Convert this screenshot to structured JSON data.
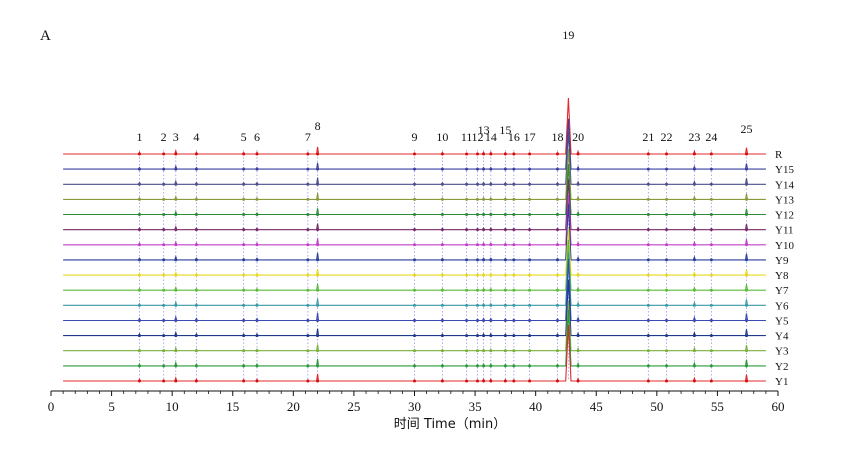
{
  "chart_data": {
    "type": "line",
    "panel_label": "A",
    "xlabel": "时间 Time（min）",
    "xlim": [
      0,
      60
    ],
    "x_ticks": [
      0,
      5,
      10,
      15,
      20,
      25,
      30,
      35,
      40,
      45,
      50,
      55,
      60
    ],
    "y_axis_shown": false,
    "grid": false,
    "legend": "none",
    "peaks": [
      {
        "label": "1",
        "rt": 7.3
      },
      {
        "label": "2",
        "rt": 9.3
      },
      {
        "label": "3",
        "rt": 10.3
      },
      {
        "label": "4",
        "rt": 12.0
      },
      {
        "label": "5",
        "rt": 15.9
      },
      {
        "label": "6",
        "rt": 17.0
      },
      {
        "label": "7",
        "rt": 21.2
      },
      {
        "label": "8",
        "rt": 22.0
      },
      {
        "label": "9",
        "rt": 30.0
      },
      {
        "label": "10",
        "rt": 32.3
      },
      {
        "label": "11",
        "rt": 34.3
      },
      {
        "label": "12",
        "rt": 35.2
      },
      {
        "label": "13",
        "rt": 35.7
      },
      {
        "label": "14",
        "rt": 36.3
      },
      {
        "label": "15",
        "rt": 37.5
      },
      {
        "label": "16",
        "rt": 38.2
      },
      {
        "label": "17",
        "rt": 39.5
      },
      {
        "label": "18",
        "rt": 41.8
      },
      {
        "label": "19",
        "rt": 42.7
      },
      {
        "label": "20",
        "rt": 43.5
      },
      {
        "label": "21",
        "rt": 49.3
      },
      {
        "label": "22",
        "rt": 50.8
      },
      {
        "label": "23",
        "rt": 53.1
      },
      {
        "label": "24",
        "rt": 54.5
      },
      {
        "label": "25",
        "rt": 57.4
      }
    ],
    "series": [
      {
        "name": "R",
        "color": "#e0282e",
        "scale": 1.0
      },
      {
        "name": "Y15",
        "color": "#3b3f9e",
        "scale": 0.9
      },
      {
        "name": "Y14",
        "color": "#4a4f8c",
        "scale": 0.95
      },
      {
        "name": "Y13",
        "color": "#8a9a3a",
        "scale": 0.9
      },
      {
        "name": "Y12",
        "color": "#2e8b3a",
        "scale": 0.9
      },
      {
        "name": "Y11",
        "color": "#7a2a6a",
        "scale": 0.9
      },
      {
        "name": "Y10",
        "color": "#c040c8",
        "scale": 0.9
      },
      {
        "name": "Y9",
        "color": "#2a3f9a",
        "scale": 1.0
      },
      {
        "name": "Y8",
        "color": "#e8d820",
        "scale": 0.85
      },
      {
        "name": "Y7",
        "color": "#5aba3a",
        "scale": 0.9
      },
      {
        "name": "Y6",
        "color": "#3a9aa8",
        "scale": 0.95
      },
      {
        "name": "Y5",
        "color": "#3a4ab0",
        "scale": 1.1
      },
      {
        "name": "Y4",
        "color": "#1f3a8a",
        "scale": 1.0
      },
      {
        "name": "Y3",
        "color": "#7ab040",
        "scale": 0.9
      },
      {
        "name": "Y2",
        "color": "#2a9a3a",
        "scale": 1.0
      },
      {
        "name": "Y1",
        "color": "#e0282e",
        "scale": 1.0
      }
    ],
    "peak_heights": [
      0.25,
      0.15,
      0.45,
      0.25,
      0.2,
      0.25,
      0.15,
      1.0,
      0.15,
      0.2,
      0.1,
      0.15,
      0.25,
      0.25,
      0.2,
      0.15,
      0.15,
      0.2,
      8.0,
      0.35,
      0.15,
      0.15,
      0.4,
      0.15,
      0.9
    ]
  }
}
